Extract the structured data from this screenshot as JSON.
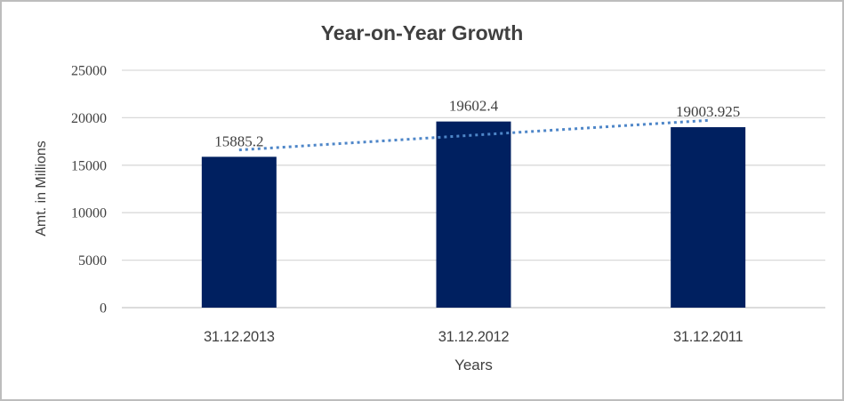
{
  "chart_data": {
    "type": "bar",
    "title": "Year-on-Year Growth",
    "xlabel": "Years",
    "ylabel": "Amt. in Millions",
    "categories": [
      "31.12.2013",
      "31.12.2012",
      "31.12.2011"
    ],
    "values": [
      15885.2,
      19602.4,
      19003.925
    ],
    "data_labels": [
      "15885.2",
      "19602.4",
      "19003.925"
    ],
    "yticks": [
      0,
      5000,
      10000,
      15000,
      20000,
      25000
    ],
    "ylim": [
      0,
      25000
    ],
    "grid": true,
    "legend": "none",
    "trendline": "linear-dotted",
    "colors": {
      "bar": "#002060",
      "trendline": "#4e86c8",
      "gridline": "#d9d9d9",
      "baseline": "#c6c6c6",
      "title_text": "#404040",
      "axis_text": "#3f3f3f",
      "frame_border": "#bdbdbd"
    }
  }
}
